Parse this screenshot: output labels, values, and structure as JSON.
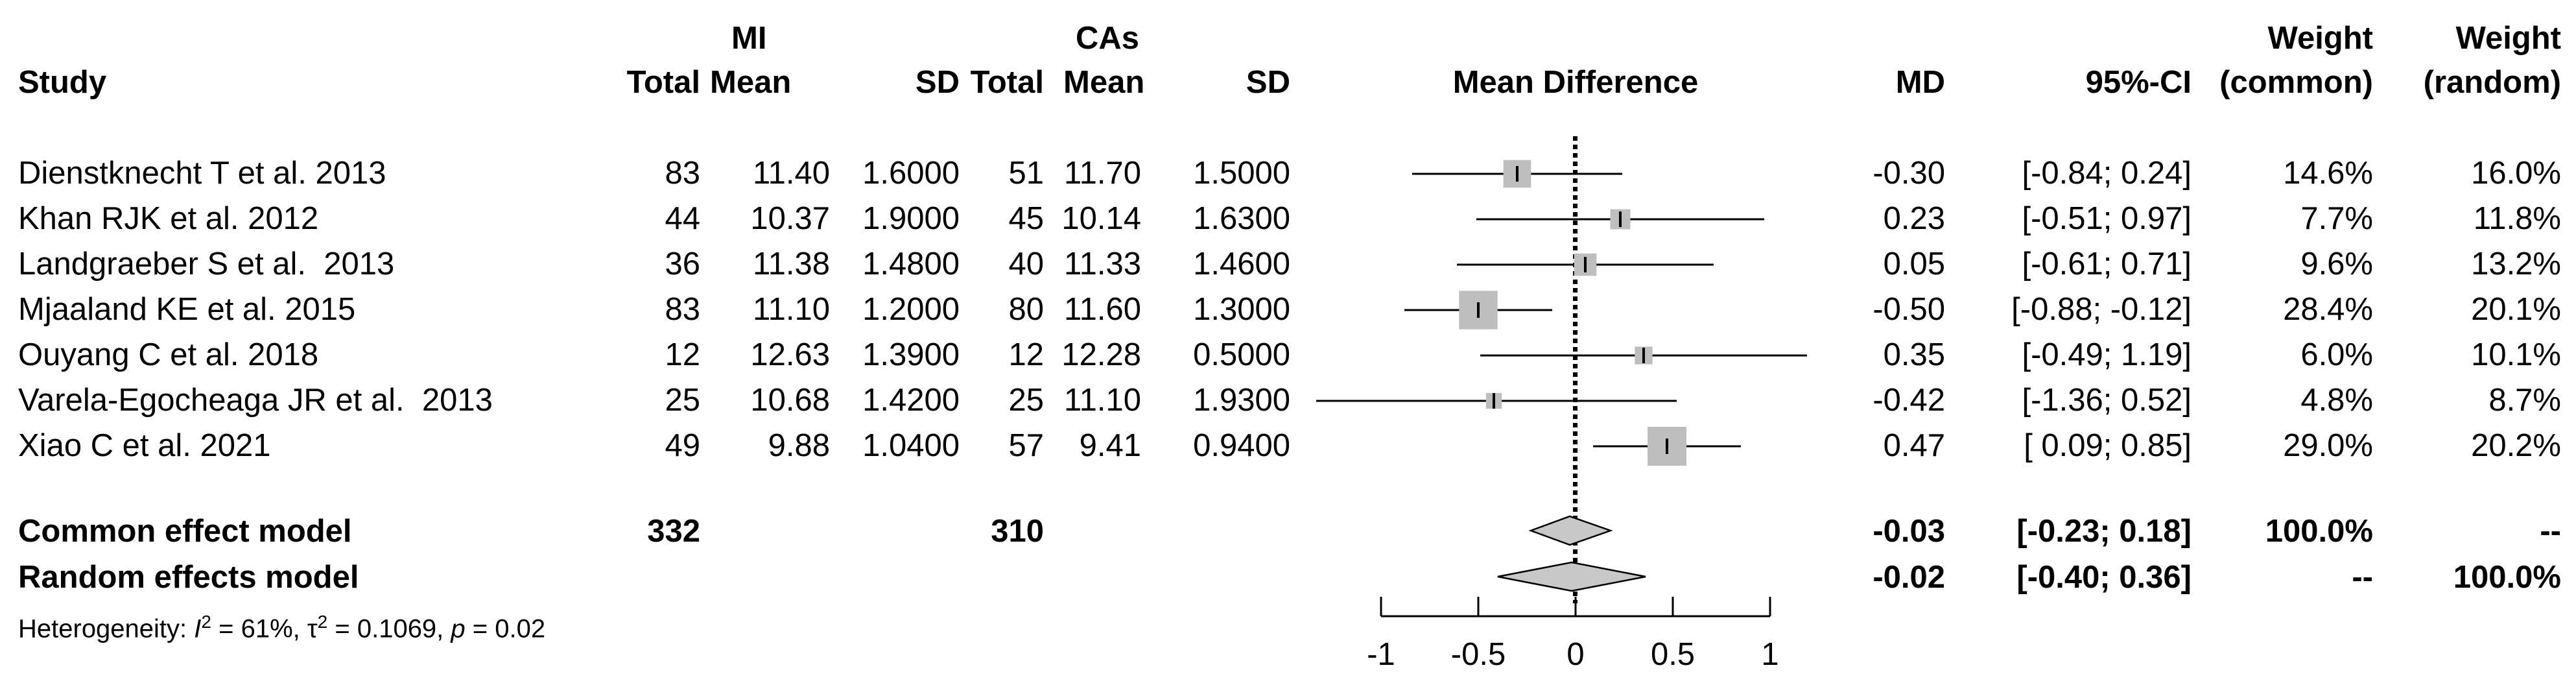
{
  "header": {
    "study": "Study",
    "group1": "MI",
    "group2": "CAs",
    "total": "Total",
    "mean": "Mean",
    "sd": "SD",
    "plot_title": "Mean Difference",
    "md": "MD",
    "ci": "95%-CI",
    "weight": "Weight",
    "weight_common": "(common)",
    "weight_random": "(random)"
  },
  "studies": [
    {
      "name": "Dienstknecht T et al. 2013",
      "mi_total": "83",
      "mi_mean": "11.40",
      "mi_sd": "1.6000",
      "ca_total": "51",
      "ca_mean": "11.70",
      "ca_sd": "1.5000",
      "md": "-0.30",
      "ci": "[-0.84; 0.24]",
      "w_common": "14.6%",
      "w_random": "16.0%"
    },
    {
      "name": "Khan RJK et al. 2012",
      "mi_total": "44",
      "mi_mean": "10.37",
      "mi_sd": "1.9000",
      "ca_total": "45",
      "ca_mean": "10.14",
      "ca_sd": "1.6300",
      "md": "0.23",
      "ci": "[-0.51; 0.97]",
      "w_common": "7.7%",
      "w_random": "11.8%"
    },
    {
      "name": "Landgraeber S et al.  2013",
      "mi_total": "36",
      "mi_mean": "11.38",
      "mi_sd": "1.4800",
      "ca_total": "40",
      "ca_mean": "11.33",
      "ca_sd": "1.4600",
      "md": "0.05",
      "ci": "[-0.61; 0.71]",
      "w_common": "9.6%",
      "w_random": "13.2%"
    },
    {
      "name": "Mjaaland KE et al. 2015",
      "mi_total": "83",
      "mi_mean": "11.10",
      "mi_sd": "1.2000",
      "ca_total": "80",
      "ca_mean": "11.60",
      "ca_sd": "1.3000",
      "md": "-0.50",
      "ci": "[-0.88; -0.12]",
      "w_common": "28.4%",
      "w_random": "20.1%"
    },
    {
      "name": "Ouyang C et al. 2018",
      "mi_total": "12",
      "mi_mean": "12.63",
      "mi_sd": "1.3900",
      "ca_total": "12",
      "ca_mean": "12.28",
      "ca_sd": "0.5000",
      "md": "0.35",
      "ci": "[-0.49; 1.19]",
      "w_common": "6.0%",
      "w_random": "10.1%"
    },
    {
      "name": "Varela-Egocheaga JR et al.  2013",
      "mi_total": "25",
      "mi_mean": "10.68",
      "mi_sd": "1.4200",
      "ca_total": "25",
      "ca_mean": "11.10",
      "ca_sd": "1.9300",
      "md": "-0.42",
      "ci": "[-1.36; 0.52]",
      "w_common": "4.8%",
      "w_random": "8.7%"
    },
    {
      "name": "Xiao C et al. 2021",
      "mi_total": "49",
      "mi_mean": "9.88",
      "mi_sd": "1.0400",
      "ca_total": "57",
      "ca_mean": "9.41",
      "ca_sd": "0.9400",
      "md": "0.47",
      "ci": "[ 0.09; 0.85]",
      "w_common": "29.0%",
      "w_random": "20.2%"
    }
  ],
  "common": {
    "label": "Common effect model",
    "mi_total": "332",
    "ca_total": "310",
    "md": "-0.03",
    "ci": "[-0.23; 0.18]",
    "w_common": "100.0%",
    "w_random": "--"
  },
  "random": {
    "label": "Random effects model",
    "md": "-0.02",
    "ci": "[-0.40; 0.36]",
    "w_common": "--",
    "w_random": "100.0%"
  },
  "heterogeneity": {
    "prefix": "Heterogeneity: ",
    "i_sym": "I",
    "i_sup": "2",
    "i_val": " = 61%, ",
    "tau_sym": "τ",
    "tau_sup": "2",
    "tau_val": " = 0.1069, ",
    "p_sym": "p",
    "p_val": " = 0.02"
  },
  "chart_data": {
    "type": "forest",
    "title": "Mean Difference",
    "xlabel": "",
    "xlim": [
      -1,
      1
    ],
    "ticks": [
      -1,
      -0.5,
      0,
      0.5,
      1
    ],
    "tick_labels": [
      "-1",
      "-0.5",
      "0",
      "0.5",
      "1"
    ],
    "studies": [
      {
        "name": "Dienstknecht T et al. 2013",
        "md": -0.3,
        "lower": -0.84,
        "upper": 0.24,
        "weight": 14.6
      },
      {
        "name": "Khan RJK et al. 2012",
        "md": 0.23,
        "lower": -0.51,
        "upper": 0.97,
        "weight": 7.7
      },
      {
        "name": "Landgraeber S et al.  2013",
        "md": 0.05,
        "lower": -0.61,
        "upper": 0.71,
        "weight": 9.6
      },
      {
        "name": "Mjaaland KE et al. 2015",
        "md": -0.5,
        "lower": -0.88,
        "upper": -0.12,
        "weight": 28.4
      },
      {
        "name": "Ouyang C et al. 2018",
        "md": 0.35,
        "lower": -0.49,
        "upper": 1.19,
        "weight": 6.0
      },
      {
        "name": "Varela-Egocheaga JR et al.  2013",
        "md": -0.42,
        "lower": -1.36,
        "upper": 0.52,
        "weight": 4.8
      },
      {
        "name": "Xiao C et al. 2021",
        "md": 0.47,
        "lower": 0.09,
        "upper": 0.85,
        "weight": 29.0
      }
    ],
    "pooled": [
      {
        "model": "common",
        "md": -0.03,
        "lower": -0.23,
        "upper": 0.18
      },
      {
        "model": "random",
        "md": -0.02,
        "lower": -0.4,
        "upper": 0.36
      }
    ],
    "reference_line": 0
  }
}
